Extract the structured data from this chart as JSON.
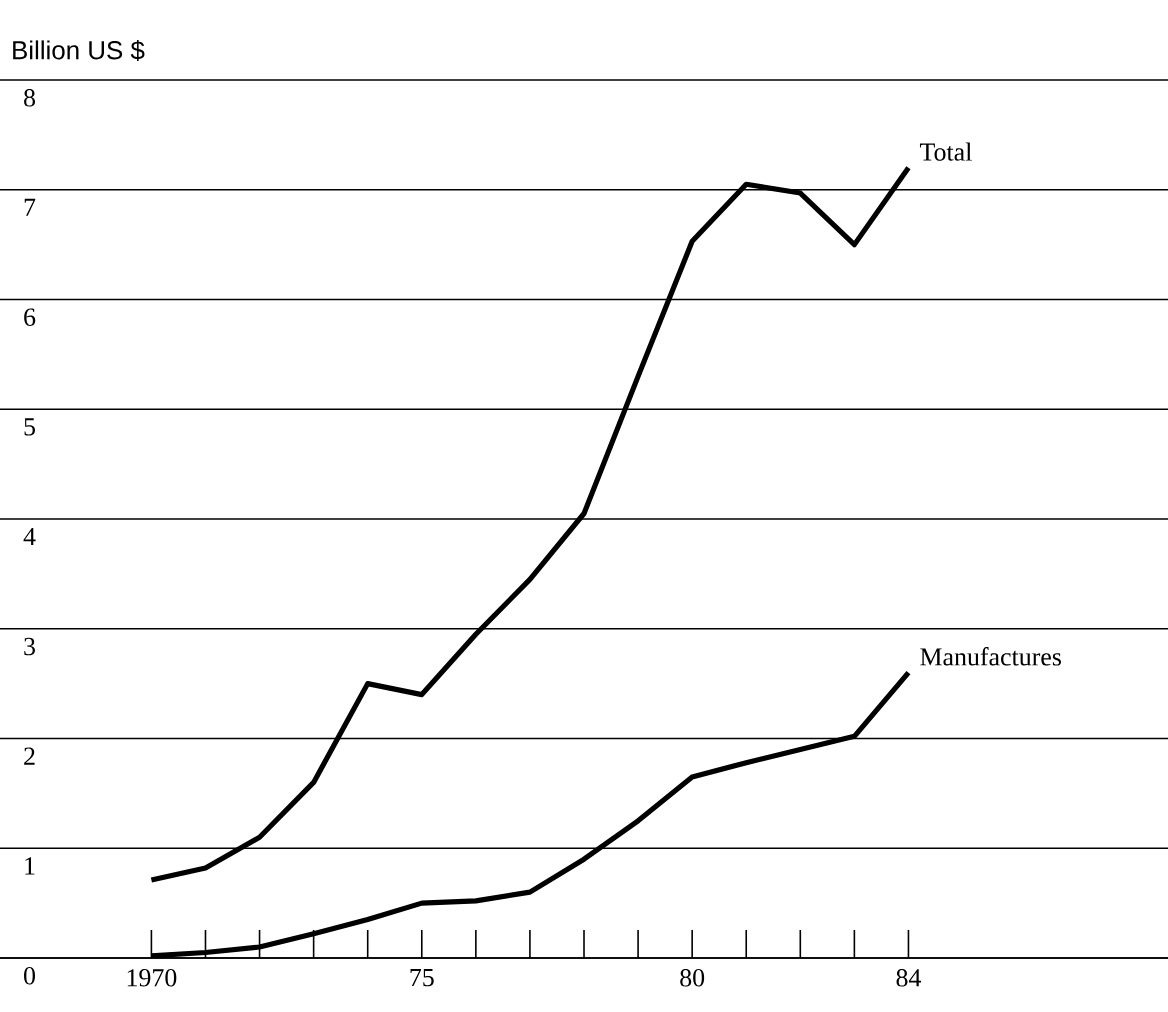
{
  "chart_data": {
    "type": "line",
    "ylabel": "Billion US $",
    "x": [
      1970,
      1971,
      1972,
      1973,
      1974,
      1975,
      1976,
      1977,
      1978,
      1979,
      1980,
      1981,
      1982,
      1983,
      1984
    ],
    "series": [
      {
        "name": "Total",
        "color": "#000000",
        "values": [
          0.71,
          0.82,
          1.1,
          1.6,
          2.5,
          2.4,
          2.95,
          3.45,
          4.05,
          5.3,
          6.53,
          7.05,
          6.97,
          6.5,
          7.2
        ]
      },
      {
        "name": "Manufactures",
        "color": "#000000",
        "values": [
          0.02,
          0.05,
          0.1,
          0.22,
          0.35,
          0.5,
          0.52,
          0.6,
          0.9,
          1.25,
          1.65,
          1.78,
          1.9,
          2.02,
          2.6
        ]
      }
    ],
    "xlim": [
      1967.2,
      1988.8
    ],
    "ylim": [
      0,
      8
    ],
    "xticks": [
      1970,
      {
        "value": 1971,
        "label": null
      },
      {
        "value": 1972,
        "label": null
      },
      {
        "value": 1973,
        "label": null
      },
      {
        "value": 1974,
        "label": null
      },
      {
        "value": 1975,
        "label": "75"
      },
      {
        "value": 1976,
        "label": null
      },
      {
        "value": 1977,
        "label": null
      },
      {
        "value": 1978,
        "label": null
      },
      {
        "value": 1979,
        "label": null
      },
      {
        "value": 1980,
        "label": "80"
      },
      {
        "value": 1981,
        "label": null
      },
      {
        "value": 1982,
        "label": null
      },
      {
        "value": 1983,
        "label": null
      },
      {
        "value": 1984,
        "label": "84"
      }
    ],
    "yticks": [
      0,
      1,
      2,
      3,
      4,
      5,
      6,
      7,
      8
    ],
    "grid": "y",
    "legend": false,
    "marker": "none",
    "line_style": "solid"
  }
}
